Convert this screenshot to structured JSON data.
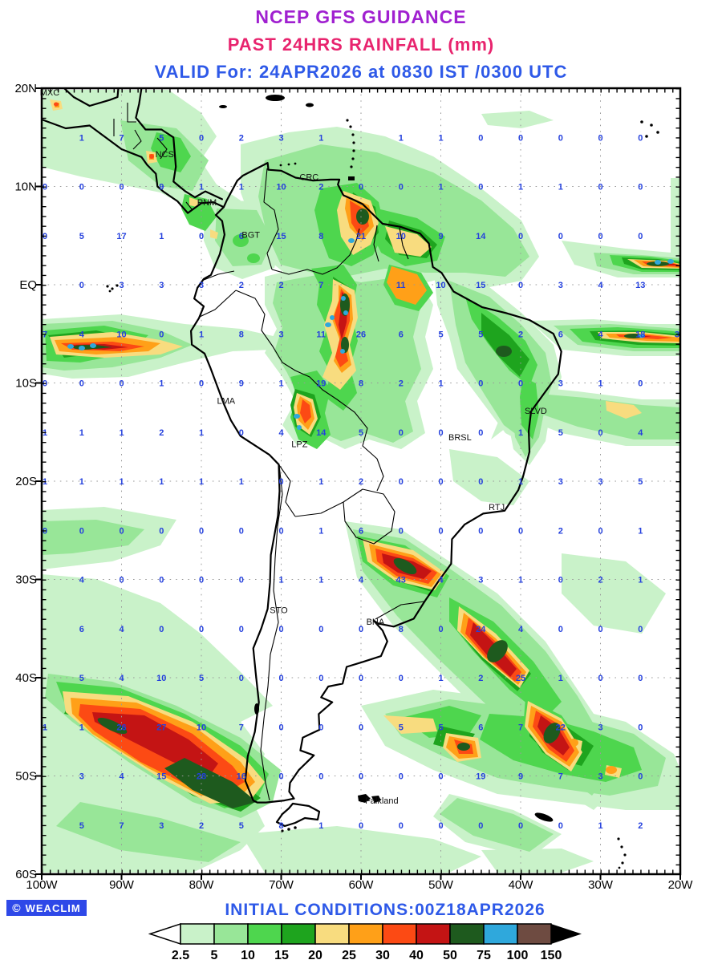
{
  "header": {
    "title": "NCEP GFS GUIDANCE",
    "subtitle": "PAST 24HRS RAINFALL (mm)",
    "valid_line": "VALID For: 24APR2026 at 0830 IST /0300 UTC"
  },
  "footer": {
    "initial_conditions": "INITIAL CONDITIONS:00Z18APR2026",
    "logo_symbol": "©",
    "logo_text": "WEACLIM"
  },
  "colors": {
    "title_purple": "#a020d0",
    "subtitle_crimson": "#e8246e",
    "text_blue": "#2e59e8",
    "grid_number_blue": "#2440dd",
    "logo_bg": "#2e48e8"
  },
  "colorbar": {
    "levels": [
      "2.5",
      "5",
      "10",
      "15",
      "20",
      "25",
      "30",
      "40",
      "50",
      "75",
      "100",
      "150"
    ],
    "colors": [
      "#c9f2c9",
      "#98e698",
      "#4ed64e",
      "#1ea41e",
      "#f8dc7f",
      "#ffa018",
      "#fc4a14",
      "#c41414",
      "#1e5a1e",
      "#2fa8dc",
      "#6e4b41"
    ],
    "under_color": "#ffffff",
    "over_color": "#000000"
  },
  "map": {
    "frame": {
      "west": 100,
      "east": 20,
      "north": 20,
      "south": -60
    },
    "number_color": "#2440dd",
    "lat_labels": [
      {
        "text": "20N",
        "lat": 20
      },
      {
        "text": "10N",
        "lat": 10
      },
      {
        "text": "EQ",
        "lat": 0
      },
      {
        "text": "10S",
        "lat": -10
      },
      {
        "text": "20S",
        "lat": -20
      },
      {
        "text": "30S",
        "lat": -30
      },
      {
        "text": "40S",
        "lat": -40
      },
      {
        "text": "50S",
        "lat": -50
      },
      {
        "text": "60S",
        "lat": -60
      }
    ],
    "lon_labels": [
      {
        "text": "100W",
        "lon": 100
      },
      {
        "text": "90W",
        "lon": 90
      },
      {
        "text": "80W",
        "lon": 80
      },
      {
        "text": "70W",
        "lon": 70
      },
      {
        "text": "60W",
        "lon": 60
      },
      {
        "text": "50W",
        "lon": 50
      },
      {
        "text": "40W",
        "lon": 40
      },
      {
        "text": "30W",
        "lon": 30
      },
      {
        "text": "20W",
        "lon": 20
      }
    ],
    "stations": [
      {
        "label": "MXC",
        "lon": 99.0,
        "lat": 19.6
      },
      {
        "label": "NCS",
        "lon": 84.6,
        "lat": 13.3
      },
      {
        "label": "CRC",
        "lon": 66.5,
        "lat": 11.0
      },
      {
        "label": "PNM",
        "lon": 79.3,
        "lat": 8.4
      },
      {
        "label": "BGT",
        "lon": 73.8,
        "lat": 5.1
      },
      {
        "label": "LMA",
        "lon": 76.9,
        "lat": -11.8
      },
      {
        "label": "LPZ",
        "lon": 67.7,
        "lat": -16.2
      },
      {
        "label": "BRSL",
        "lon": 47.6,
        "lat": -15.5
      },
      {
        "label": "SLVD",
        "lon": 38.1,
        "lat": -12.8
      },
      {
        "label": "RTJ",
        "lon": 43.0,
        "lat": -22.6
      },
      {
        "label": "STO",
        "lon": 70.3,
        "lat": -33.1
      },
      {
        "label": "BNA",
        "lon": 58.2,
        "lat": -34.3
      },
      {
        "label": "Falkland",
        "lon": 57.4,
        "lat": -52.5
      }
    ],
    "grid_values": {
      "lons": [
        100,
        95,
        90,
        85,
        80,
        75,
        70,
        65,
        60,
        55,
        50,
        45,
        40,
        35,
        30,
        25,
        20
      ],
      "rows": [
        {
          "lat": 15,
          "values": [
            null,
            1,
            7,
            5,
            0,
            2,
            3,
            1,
            null,
            1,
            1,
            0,
            0,
            0,
            0,
            0,
            null
          ]
        },
        {
          "lat": 10,
          "values": [
            0,
            0,
            0,
            9,
            1,
            1,
            10,
            2,
            0,
            0,
            1,
            0,
            1,
            1,
            0,
            0,
            null
          ]
        },
        {
          "lat": 5,
          "values": [
            0,
            5,
            17,
            1,
            0,
            6,
            15,
            8,
            21,
            10,
            9,
            14,
            0,
            0,
            0,
            0,
            null
          ]
        },
        {
          "lat": 0,
          "values": [
            null,
            0,
            3,
            3,
            3,
            2,
            2,
            7,
            null,
            11,
            10,
            15,
            0,
            3,
            4,
            13,
            null
          ]
        },
        {
          "lat": -5,
          "values": [
            7,
            4,
            10,
            0,
            1,
            8,
            3,
            11,
            26,
            6,
            5,
            5,
            2,
            6,
            4,
            18,
            3
          ]
        },
        {
          "lat": -10,
          "values": [
            0,
            0,
            0,
            1,
            0,
            9,
            1,
            19,
            8,
            2,
            1,
            0,
            0,
            3,
            1,
            0,
            null
          ]
        },
        {
          "lat": -15,
          "values": [
            1,
            1,
            1,
            2,
            1,
            0,
            4,
            14,
            5,
            0,
            0,
            0,
            1,
            5,
            0,
            4,
            null
          ]
        },
        {
          "lat": -20,
          "values": [
            1,
            1,
            1,
            1,
            1,
            1,
            0,
            1,
            2,
            0,
            0,
            0,
            1,
            3,
            3,
            5,
            null
          ]
        },
        {
          "lat": -25,
          "values": [
            0,
            0,
            0,
            0,
            0,
            0,
            0,
            1,
            6,
            0,
            0,
            0,
            0,
            2,
            0,
            1,
            null
          ]
        },
        {
          "lat": -30,
          "values": [
            null,
            4,
            0,
            0,
            0,
            0,
            1,
            1,
            4,
            43,
            4,
            3,
            1,
            0,
            2,
            1,
            null
          ]
        },
        {
          "lat": -35,
          "values": [
            null,
            6,
            4,
            0,
            0,
            0,
            0,
            0,
            0,
            8,
            0,
            24,
            4,
            0,
            0,
            0,
            null
          ]
        },
        {
          "lat": -40,
          "values": [
            null,
            5,
            4,
            10,
            5,
            0,
            0,
            0,
            0,
            0,
            1,
            2,
            25,
            1,
            0,
            0,
            null
          ]
        },
        {
          "lat": -45,
          "values": [
            1,
            1,
            26,
            27,
            10,
            7,
            0,
            0,
            0,
            5,
            5,
            6,
            7,
            22,
            3,
            0,
            null
          ]
        },
        {
          "lat": -50,
          "values": [
            null,
            3,
            4,
            15,
            28,
            16,
            0,
            0,
            0,
            0,
            0,
            19,
            9,
            7,
            3,
            0,
            null
          ]
        },
        {
          "lat": -55,
          "values": [
            null,
            5,
            7,
            3,
            2,
            5,
            8,
            1,
            0,
            0,
            0,
            0,
            0,
            0,
            1,
            2,
            null
          ]
        }
      ]
    }
  }
}
